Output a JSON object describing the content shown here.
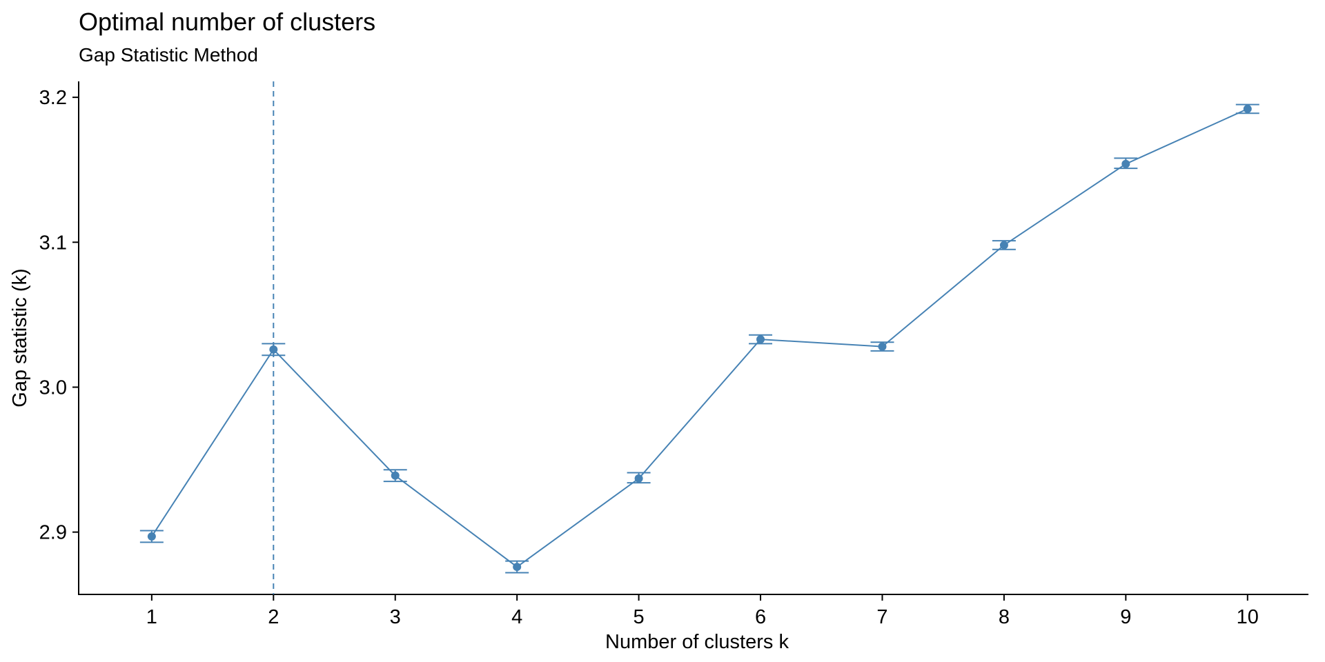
{
  "chart_data": {
    "type": "line",
    "title": "Optimal number of clusters",
    "subtitle": "Gap Statistic Method",
    "xlabel": "Number of clusters k",
    "ylabel": "Gap statistic (k)",
    "x": [
      1,
      2,
      3,
      4,
      5,
      6,
      7,
      8,
      9,
      10
    ],
    "x_tick_labels": [
      "1",
      "2",
      "3",
      "4",
      "5",
      "6",
      "7",
      "8",
      "9",
      "10"
    ],
    "series": [
      {
        "values": [
          2.897,
          3.026,
          2.939,
          2.876,
          2.937,
          3.033,
          3.028,
          3.098,
          3.154,
          3.192
        ],
        "error_low": [
          2.893,
          3.022,
          2.935,
          2.872,
          2.934,
          3.03,
          3.025,
          3.095,
          3.151,
          3.189
        ],
        "error_high": [
          2.901,
          3.03,
          2.943,
          2.88,
          2.941,
          3.036,
          3.031,
          3.101,
          3.158,
          3.195
        ]
      }
    ],
    "optimal_k": 2,
    "ylim": [
      2.857,
      3.211
    ],
    "xlim": [
      0.4,
      10.5
    ],
    "y_ticks": [
      2.9,
      3.0,
      3.1,
      3.2
    ],
    "y_tick_labels": [
      "2.9",
      "3.0",
      "3.1",
      "3.2"
    ],
    "grid": false,
    "color": "#4682B4"
  }
}
